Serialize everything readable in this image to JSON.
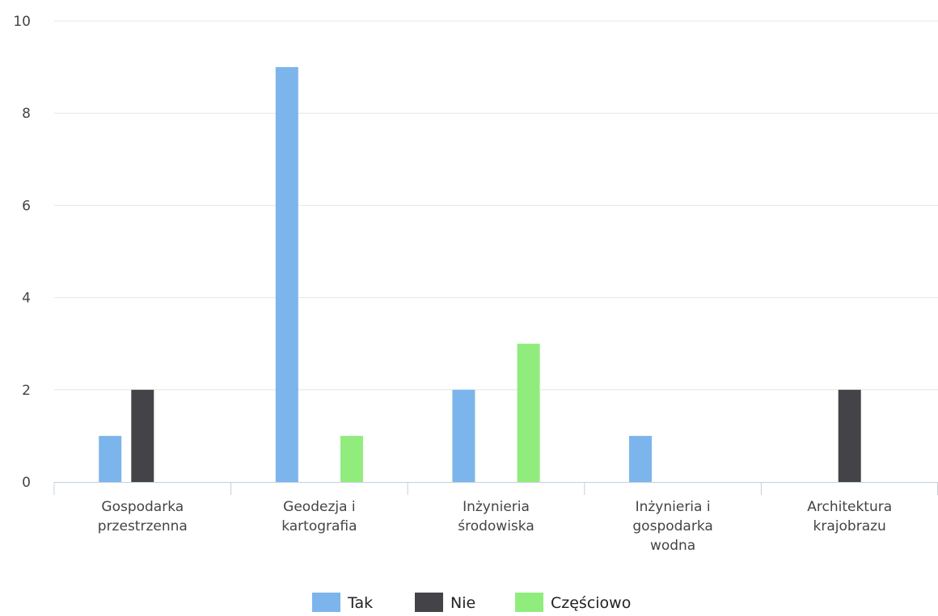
{
  "chart_data": {
    "type": "bar",
    "categories": [
      [
        "Gospodarka",
        "przestrzenna"
      ],
      [
        "Geodezja i",
        "kartografia"
      ],
      [
        "Inżynieria",
        "środowiska"
      ],
      [
        "Inżynieria i",
        "gospodarka",
        "wodna"
      ],
      [
        "Architektura",
        "krajobrazu"
      ]
    ],
    "series": [
      {
        "name": "Tak",
        "color": "#7cb5ec",
        "values": [
          1,
          9,
          2,
          1,
          0
        ]
      },
      {
        "name": "Nie",
        "color": "#434348",
        "values": [
          2,
          0,
          0,
          0,
          2
        ]
      },
      {
        "name": "Częściowo",
        "color": "#90ed7d",
        "values": [
          0,
          1,
          3,
          0,
          0
        ]
      }
    ],
    "yticks": [
      0,
      2,
      4,
      6,
      8,
      10
    ],
    "ylim": [
      0,
      10
    ],
    "grid": true,
    "legend_position": "bottom-center",
    "title": "",
    "xlabel": "",
    "ylabel": ""
  }
}
